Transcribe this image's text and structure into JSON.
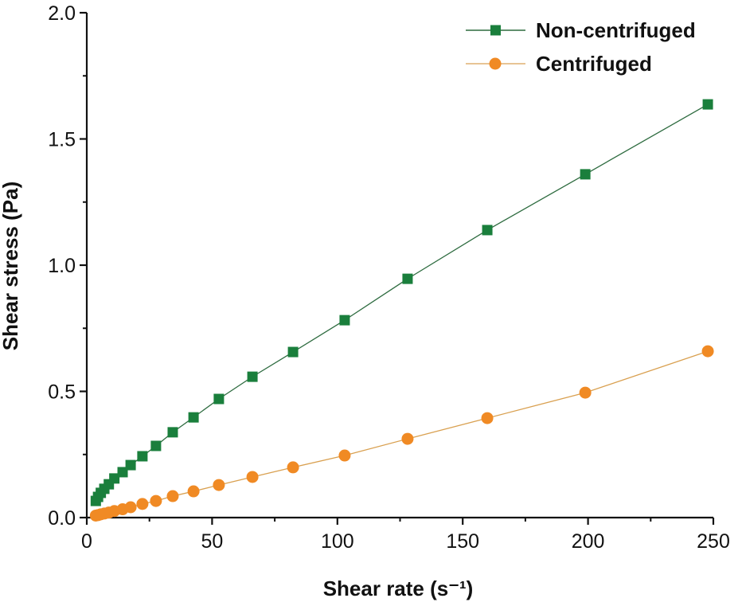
{
  "chart_data": {
    "type": "line",
    "title": "",
    "xlabel": "Shear rate (s⁻¹)",
    "ylabel": "Shear stress (Pa)",
    "xlim": [
      0,
      250
    ],
    "ylim": [
      0,
      2.0
    ],
    "x_ticks": [
      0,
      50,
      100,
      150,
      200,
      250
    ],
    "x_tick_labels": [
      "0",
      "50",
      "100",
      "150",
      "200",
      "250"
    ],
    "x_minor_ticks": [
      25,
      75,
      125,
      175,
      225
    ],
    "y_ticks": [
      0,
      0.5,
      1.0,
      1.5,
      2.0
    ],
    "y_tick_labels": [
      "0.0",
      "0.5",
      "1.0",
      "1.5",
      "2.0"
    ],
    "y_minor_ticks": [
      0.25,
      0.75,
      1.25,
      1.75
    ],
    "grid": false,
    "legend_position": "top-right",
    "x": [
      3.6,
      4.5,
      5.6,
      7.0,
      8.8,
      11.0,
      14.3,
      17.5,
      22.2,
      27.6,
      34.3,
      42.6,
      52.7,
      66.1,
      82.3,
      102.9,
      128.0,
      159.8,
      198.9,
      247.8
    ],
    "series": [
      {
        "name": "Non-centrifuged",
        "color": "#1a7f3c",
        "marker": "square",
        "values": [
          0.066,
          0.082,
          0.098,
          0.114,
          0.132,
          0.155,
          0.18,
          0.208,
          0.243,
          0.284,
          0.338,
          0.397,
          0.47,
          0.558,
          0.656,
          0.782,
          0.946,
          1.139,
          1.36,
          1.637
        ]
      },
      {
        "name": "Centrifuged",
        "color": "#f08a24",
        "marker": "circle",
        "values": [
          0.008,
          0.01,
          0.013,
          0.016,
          0.02,
          0.026,
          0.033,
          0.041,
          0.054,
          0.066,
          0.085,
          0.104,
          0.129,
          0.161,
          0.199,
          0.246,
          0.312,
          0.394,
          0.495,
          0.659
        ]
      }
    ]
  }
}
